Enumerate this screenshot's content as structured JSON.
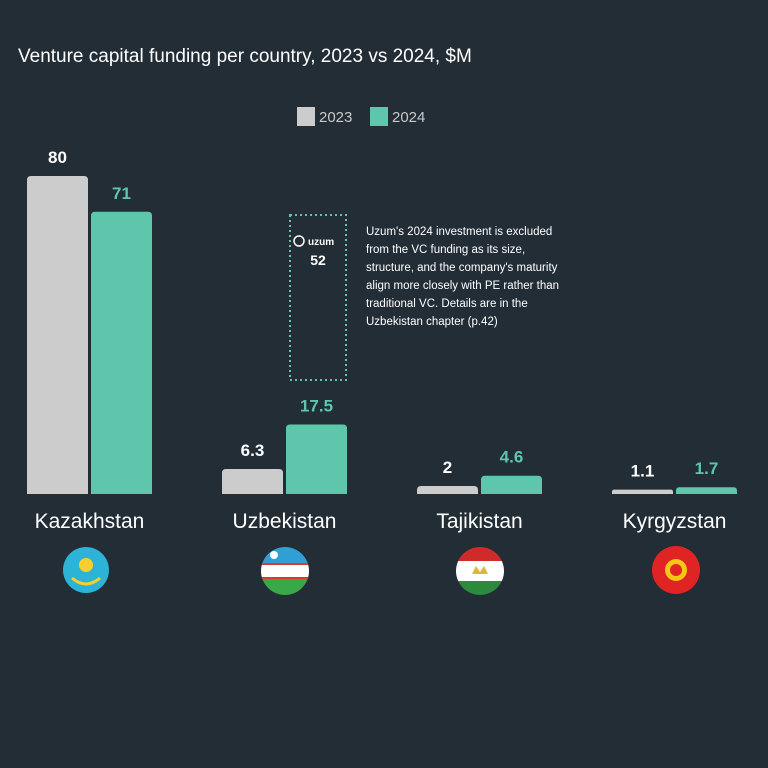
{
  "chart_data": {
    "type": "bar",
    "title": "Venture capital funding per country, 2023 vs 2024, $M",
    "categories": [
      "Kazakhstan",
      "Uzbekistan",
      "Tajikistan",
      "Kyrgyzstan"
    ],
    "series": [
      {
        "name": "2023",
        "values": [
          80,
          6.3,
          2,
          1.1
        ],
        "labels": [
          "80",
          "6.3",
          "2",
          "1.1"
        ],
        "color": "#cccccc"
      },
      {
        "name": "2024",
        "values": [
          71,
          17.5,
          4.6,
          1.7
        ],
        "labels": [
          "71",
          "17.5",
          "4.6",
          "1.7"
        ],
        "color": "#5ec7ab"
      }
    ],
    "ylim": [
      0,
      80
    ],
    "legend_position": "top-center",
    "grid": false,
    "annotation": {
      "category": "Uzbekistan",
      "series": "2024",
      "excluded_label": "uzum",
      "excluded_value": 52,
      "excluded_value_label": "52",
      "text_lines": [
        "Uzum's 2024 investment is excluded",
        "from the VC funding as its size,",
        "structure, and the company's maturity",
        "align more closely with PE rather than",
        "traditional VC. Details are in the",
        "Uzbekistan chapter (p.42)"
      ]
    },
    "flag_icons": [
      "kazakhstan-flag-icon",
      "uzbekistan-flag-icon",
      "tajikistan-flag-icon",
      "kyrgyzstan-flag-icon"
    ]
  }
}
